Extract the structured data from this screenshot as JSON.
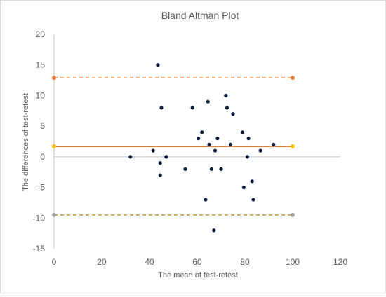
{
  "chart_data": {
    "type": "scatter",
    "title": "Bland Altman Plot",
    "xlabel": "The mean of test-retest",
    "ylabel": "The differences of test-retest",
    "xlim": [
      0,
      120
    ],
    "ylim": [
      -15,
      20
    ],
    "x_ticks": [
      0,
      20,
      40,
      60,
      80,
      100,
      120
    ],
    "y_ticks": [
      -15,
      -10,
      -5,
      0,
      5,
      10,
      15,
      20
    ],
    "grid": false,
    "points": [
      {
        "x": 32,
        "y": 0
      },
      {
        "x": 41.5,
        "y": 1
      },
      {
        "x": 43.5,
        "y": 15
      },
      {
        "x": 44.5,
        "y": -1
      },
      {
        "x": 44.5,
        "y": -3
      },
      {
        "x": 45,
        "y": 8
      },
      {
        "x": 47,
        "y": 0
      },
      {
        "x": 55,
        "y": -2
      },
      {
        "x": 58,
        "y": 8
      },
      {
        "x": 60.5,
        "y": 3
      },
      {
        "x": 62,
        "y": 4
      },
      {
        "x": 63.5,
        "y": -7
      },
      {
        "x": 64.5,
        "y": 9
      },
      {
        "x": 65,
        "y": 2
      },
      {
        "x": 66,
        "y": -2
      },
      {
        "x": 67,
        "y": -12
      },
      {
        "x": 67.5,
        "y": 1
      },
      {
        "x": 68.5,
        "y": 3
      },
      {
        "x": 70,
        "y": -2
      },
      {
        "x": 72,
        "y": 10
      },
      {
        "x": 72.5,
        "y": 8
      },
      {
        "x": 74,
        "y": 2
      },
      {
        "x": 75,
        "y": 7
      },
      {
        "x": 79,
        "y": 4
      },
      {
        "x": 79.5,
        "y": -5
      },
      {
        "x": 81,
        "y": 0
      },
      {
        "x": 81.5,
        "y": 3
      },
      {
        "x": 83,
        "y": -4
      },
      {
        "x": 83.5,
        "y": -7
      },
      {
        "x": 86.5,
        "y": 1
      },
      {
        "x": 92,
        "y": 2
      }
    ],
    "reference_lines": [
      {
        "y": 12.9,
        "x_range": [
          0,
          100
        ],
        "color": "#ED7D31",
        "style": "dashed",
        "start_marker": "#ED7D31",
        "end_marker": "#ED7D31"
      },
      {
        "y": 1.7,
        "x_range": [
          0,
          100
        ],
        "color": "#ED7D31",
        "style": "solid",
        "start_marker": "#FFC000",
        "end_marker": "#FFC000"
      },
      {
        "y": -9.5,
        "x_range": [
          0,
          100
        ],
        "color": "#C09A2A",
        "style": "dashed",
        "start_marker": "#A5A5A5",
        "end_marker": "#A5A5A5"
      }
    ],
    "colors": {
      "points": "#0A1E3C",
      "axis": "#BFBFBF",
      "border": "#D9D9D9",
      "text": "#595959"
    }
  }
}
